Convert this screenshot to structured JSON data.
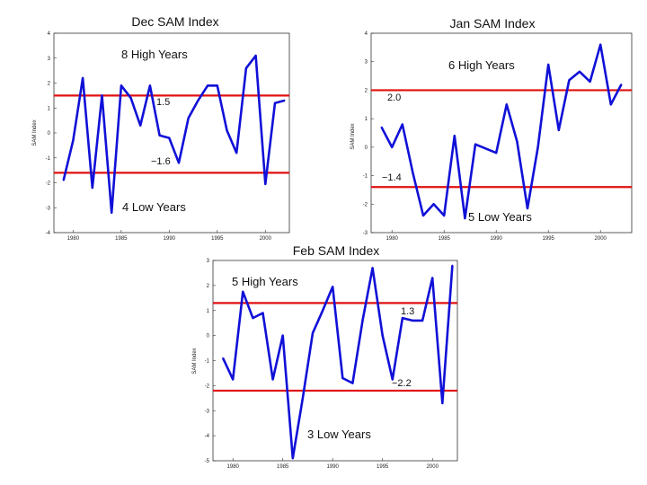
{
  "colors": {
    "line": "#1010d8",
    "threshold": "#e01010",
    "frame": "#333333"
  },
  "chart_data": [
    {
      "type": "line",
      "title": "Dec SAM Index",
      "ylabel": "SAM Index",
      "xlabel": "",
      "xlim": [
        1978,
        2002.5
      ],
      "ylim": [
        -4,
        4
      ],
      "xticks": [
        1980,
        1985,
        1990,
        1995,
        2000
      ],
      "yticks": [
        -4,
        -3,
        -2,
        -1,
        0,
        1,
        2,
        3,
        4
      ],
      "x": [
        1979,
        1980,
        1981,
        1982,
        1983,
        1984,
        1985,
        1986,
        1987,
        1988,
        1989,
        1990,
        1991,
        1992,
        1993,
        1994,
        1995,
        1996,
        1997,
        1998,
        1999,
        2000,
        2001,
        2002
      ],
      "series": [
        {
          "name": "Dec SAM Index",
          "values": [
            -1.9,
            -0.3,
            2.2,
            -2.2,
            1.5,
            -3.2,
            1.9,
            1.4,
            0.3,
            1.9,
            -0.1,
            -0.2,
            -1.2,
            0.6,
            1.3,
            1.9,
            1.9,
            0.1,
            -0.8,
            2.6,
            3.1,
            -2.05,
            1.2,
            1.3
          ]
        }
      ],
      "thresholds": [
        {
          "value": 1.5,
          "label": "1.5"
        },
        {
          "value": -1.6,
          "label": "−1.6"
        }
      ],
      "annotations": [
        "8 High Years",
        "4 Low Years"
      ]
    },
    {
      "type": "line",
      "title": "Jan SAM Index",
      "ylabel": "SAM Index",
      "xlabel": "",
      "xlim": [
        1978,
        2003
      ],
      "ylim": [
        -3,
        4
      ],
      "xticks": [
        1980,
        1985,
        1990,
        1995,
        2000
      ],
      "yticks": [
        -3,
        -2,
        -1,
        0,
        1,
        2,
        3,
        4
      ],
      "x": [
        1979,
        1980,
        1981,
        1982,
        1983,
        1984,
        1985,
        1986,
        1987,
        1988,
        1989,
        1990,
        1991,
        1992,
        1993,
        1994,
        1995,
        1996,
        1997,
        1998,
        1999,
        2000,
        2001,
        2002
      ],
      "series": [
        {
          "name": "Jan SAM Index",
          "values": [
            0.7,
            0.0,
            0.8,
            -0.9,
            -2.4,
            -2.0,
            -2.4,
            0.4,
            -2.5,
            0.1,
            -0.05,
            -0.2,
            1.5,
            0.2,
            -2.15,
            0.0,
            2.9,
            0.6,
            2.35,
            2.65,
            2.3,
            3.6,
            1.5,
            2.2
          ]
        }
      ],
      "thresholds": [
        {
          "value": 2.0,
          "label": "2.0"
        },
        {
          "value": -1.4,
          "label": "−1.4"
        }
      ],
      "annotations": [
        "6 High Years",
        "5 Low Years"
      ]
    },
    {
      "type": "line",
      "title": "Feb SAM Index",
      "ylabel": "SAM Index",
      "xlabel": "",
      "xlim": [
        1978,
        2002.5
      ],
      "ylim": [
        -5,
        3
      ],
      "xticks": [
        1980,
        1985,
        1990,
        1995,
        2000
      ],
      "yticks": [
        -5,
        -4,
        -3,
        -2,
        -1,
        0,
        1,
        2,
        3
      ],
      "x": [
        1979,
        1980,
        1981,
        1982,
        1983,
        1984,
        1985,
        1986,
        1987,
        1988,
        1989,
        1990,
        1991,
        1992,
        1993,
        1994,
        1995,
        1996,
        1997,
        1998,
        1999,
        2000,
        2001,
        2002
      ],
      "series": [
        {
          "name": "Feb SAM Index",
          "values": [
            -0.9,
            -1.75,
            1.75,
            0.7,
            0.9,
            -1.75,
            0.0,
            -4.9,
            -2.5,
            0.1,
            1.0,
            1.95,
            -1.7,
            -1.9,
            0.6,
            2.7,
            0.0,
            -1.75,
            0.7,
            0.6,
            0.6,
            2.3,
            -2.7,
            2.8
          ]
        }
      ],
      "thresholds": [
        {
          "value": 1.3,
          "label": "1.3"
        },
        {
          "value": -2.2,
          "label": "−2.2"
        }
      ],
      "annotations": [
        "5 High Years",
        "3 Low Years"
      ]
    }
  ]
}
